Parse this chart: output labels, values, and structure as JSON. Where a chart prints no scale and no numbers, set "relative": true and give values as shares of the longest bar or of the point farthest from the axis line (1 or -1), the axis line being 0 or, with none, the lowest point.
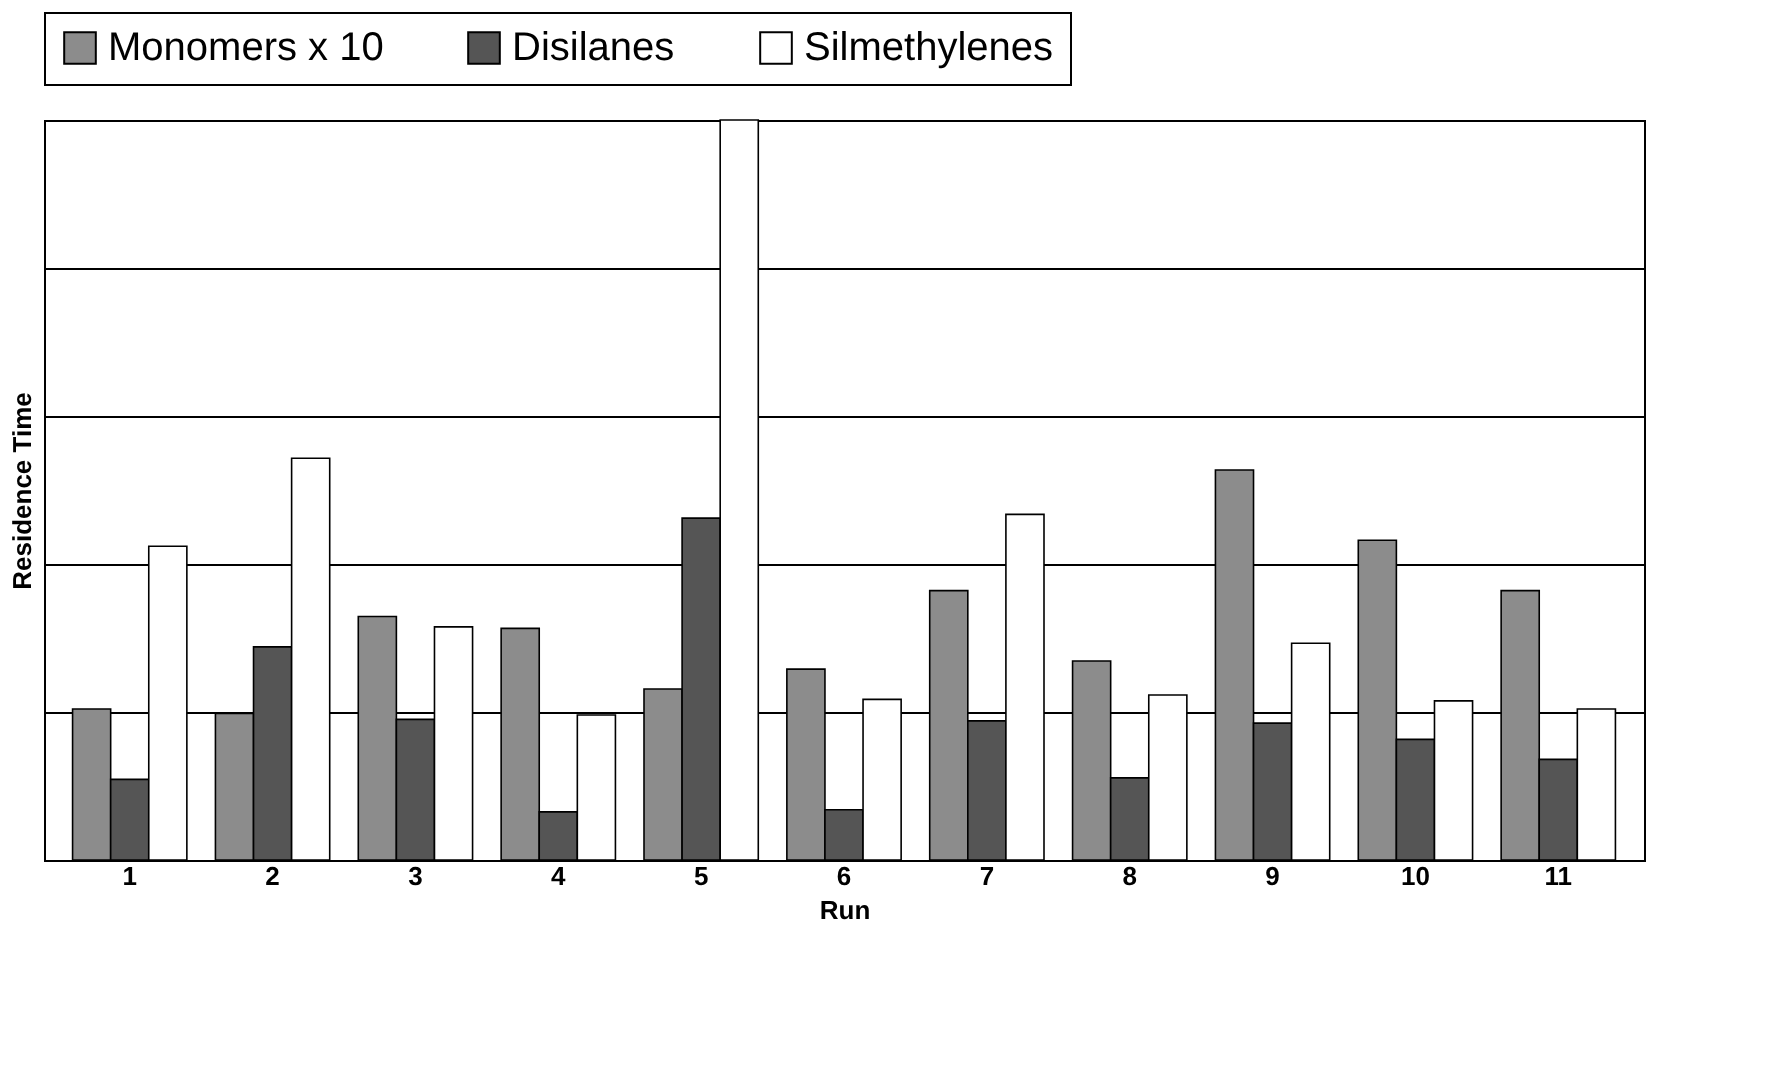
{
  "chart_data": {
    "type": "bar",
    "relative": true,
    "xlabel": "Run",
    "ylabel": "Residence Time",
    "categories": [
      null,
      "1",
      "2",
      "3",
      "4",
      "5",
      "6",
      "7",
      "8",
      "9",
      "10",
      "11"
    ],
    "series": [
      {
        "name": "Monomers x 10",
        "color": "#8c8c8c",
        "values": [
          null,
          0.204,
          0.198,
          0.329,
          0.313,
          0.231,
          0.258,
          0.364,
          0.269,
          0.527,
          0.432,
          0.364
        ]
      },
      {
        "name": "Disilanes",
        "color": "#555555",
        "values": [
          null,
          0.109,
          0.288,
          0.19,
          0.065,
          0.462,
          0.068,
          0.188,
          0.111,
          0.185,
          0.163,
          0.136
        ]
      },
      {
        "name": "Silmethylenes",
        "color": "#ffffff",
        "values": [
          null,
          0.424,
          0.543,
          0.315,
          0.196,
          1,
          0.217,
          0.467,
          0.223,
          0.293,
          0.215,
          0.204
        ]
      }
    ],
    "grid": "y",
    "legend": "top"
  }
}
